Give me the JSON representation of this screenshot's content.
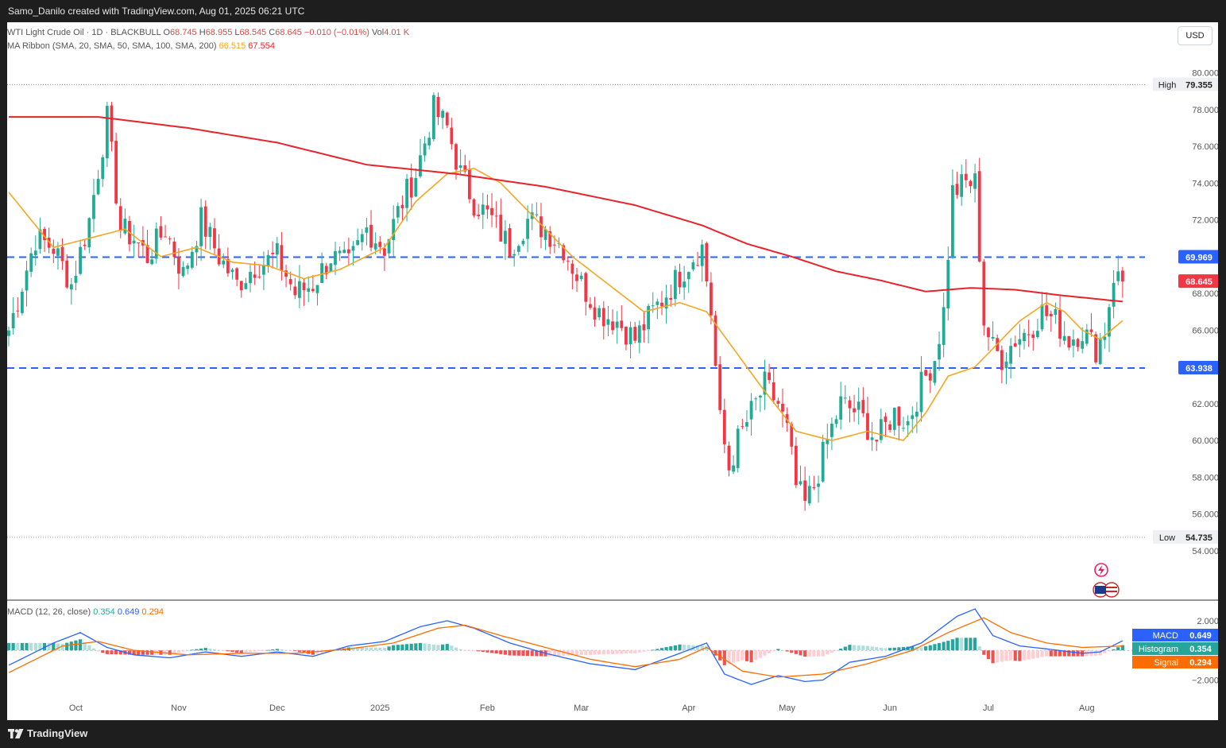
{
  "header": {
    "credit": "Samo_Danilo created with TradingView.com, Aug 01, 2025 06:21 UTC"
  },
  "footer": {
    "brand": "TradingView"
  },
  "legend": {
    "symbol": "WTI Light Crude Oil · 1D · BLACKBULL",
    "o_label": "O",
    "o_value": "68.745",
    "h_label": "H",
    "h_value": "68.955",
    "l_label": "L",
    "l_value": "68.545",
    "c_label": "C",
    "c_value": "68.645",
    "change": "−0.010 (−0.01%)",
    "vol_label": "Vol",
    "vol_value": "4.01 K",
    "ma_label": "MA Ribbon (SMA, 20, SMA, 50, SMA, 100, SMA, 200)",
    "ma_v1": "66.515",
    "ma_v2": "67.554",
    "macd_label": "MACD (12, 26, close)",
    "macd_v1": "0.354",
    "macd_v2": "0.649",
    "macd_v3": "0.294"
  },
  "currency_button": "USD",
  "colors": {
    "up": "#22ab94",
    "down": "#f23645",
    "ma20": "#f5a623",
    "ma200": "#e8232b",
    "level": "#2962ff",
    "macd": "#2962ff",
    "signal": "#ff6d00",
    "hist_up": "#26a69a",
    "hist_down": "#ef5350"
  },
  "chart_data": [
    {
      "type": "candlestick",
      "title": "WTI Light Crude Oil · 1D · BLACKBULL",
      "xlabel": "",
      "ylabel": "",
      "ylim": [
        53,
        80.5
      ],
      "y_ticks": [
        "80.000",
        "78.000",
        "76.000",
        "74.000",
        "72.000",
        "70.000",
        "68.000",
        "66.000",
        "64.000",
        "62.000",
        "60.000",
        "58.000",
        "56.000",
        "54.000"
      ],
      "x_ticks": [
        "Oct",
        "Nov",
        "Dec",
        "2025",
        "Feb",
        "Mar",
        "Apr",
        "May",
        "Jun",
        "Jul",
        "Aug"
      ],
      "grid": false,
      "last_price": "68.645",
      "high": {
        "label": "High",
        "value": "79.355"
      },
      "low": {
        "label": "Low",
        "value": "54.735"
      },
      "levels": [
        {
          "value": "69.969"
        },
        {
          "value": "63.938"
        }
      ],
      "anchors": [
        [
          0,
          66.0
        ],
        [
          6,
          71.0
        ],
        [
          10,
          70.5
        ],
        [
          14,
          68.5
        ],
        [
          18,
          72.0
        ],
        [
          22,
          77.5
        ],
        [
          25,
          71.5
        ],
        [
          28,
          71.0
        ],
        [
          31,
          70.0
        ],
        [
          35,
          71.5
        ],
        [
          39,
          69.0
        ],
        [
          43,
          72.0
        ],
        [
          47,
          70.0
        ],
        [
          51,
          68.5
        ],
        [
          55,
          69.5
        ],
        [
          60,
          70.0
        ],
        [
          64,
          68.0
        ],
        [
          68,
          68.5
        ],
        [
          72,
          70.0
        ],
        [
          76,
          69.5
        ],
        [
          80,
          71.5
        ],
        [
          84,
          70.5
        ],
        [
          88,
          73.0
        ],
        [
          91,
          74.5
        ],
        [
          95,
          78.0
        ],
        [
          98,
          77.0
        ],
        [
          101,
          74.5
        ],
        [
          104,
          73.0
        ],
        [
          108,
          72.0
        ],
        [
          112,
          70.5
        ],
        [
          116,
          72.0
        ],
        [
          120,
          71.5
        ],
        [
          124,
          70.5
        ],
        [
          128,
          68.5
        ],
        [
          132,
          67.0
        ],
        [
          136,
          66.5
        ],
        [
          140,
          65.5
        ],
        [
          144,
          67.0
        ],
        [
          147,
          68.0
        ],
        [
          150,
          69.0
        ],
        [
          153,
          70.0
        ],
        [
          155,
          70.5
        ],
        [
          157,
          67.0
        ],
        [
          159,
          61.0
        ],
        [
          161,
          58.5
        ],
        [
          163,
          60.0
        ],
        [
          166,
          61.5
        ],
        [
          169,
          63.0
        ],
        [
          172,
          62.0
        ],
        [
          174,
          60.5
        ],
        [
          176,
          57.5
        ],
        [
          178,
          56.5
        ],
        [
          180,
          57.5
        ],
        [
          183,
          60.0
        ],
        [
          186,
          62.0
        ],
        [
          190,
          61.5
        ],
        [
          194,
          60.0
        ],
        [
          198,
          61.5
        ],
        [
          201,
          61.0
        ],
        [
          204,
          63.0
        ],
        [
          207,
          64.5
        ],
        [
          209,
          67.0
        ],
        [
          211,
          73.5
        ],
        [
          214,
          74.0
        ],
        [
          216,
          74.0
        ],
        [
          218,
          66.5
        ],
        [
          220,
          65.0
        ],
        [
          222,
          64.5
        ],
        [
          225,
          65.5
        ],
        [
          228,
          66.0
        ],
        [
          231,
          67.0
        ],
        [
          234,
          66.5
        ],
        [
          237,
          65.5
        ],
        [
          240,
          66.0
        ],
        [
          243,
          65.0
        ],
        [
          245,
          66.0
        ],
        [
          247,
          69.0
        ],
        [
          249,
          68.645
        ]
      ],
      "ma20_anchors": [
        [
          0,
          73.5
        ],
        [
          10,
          70.5
        ],
        [
          18,
          71.0
        ],
        [
          26,
          71.5
        ],
        [
          34,
          70.0
        ],
        [
          42,
          70.5
        ],
        [
          50,
          69.7
        ],
        [
          58,
          69.5
        ],
        [
          66,
          68.8
        ],
        [
          74,
          69.3
        ],
        [
          84,
          70.5
        ],
        [
          91,
          73.0
        ],
        [
          98,
          74.5
        ],
        [
          104,
          74.8
        ],
        [
          110,
          74.0
        ],
        [
          118,
          72.0
        ],
        [
          126,
          70.0
        ],
        [
          134,
          68.5
        ],
        [
          142,
          67.0
        ],
        [
          150,
          67.5
        ],
        [
          156,
          67.0
        ],
        [
          162,
          65.0
        ],
        [
          168,
          63.0
        ],
        [
          176,
          60.5
        ],
        [
          184,
          60.0
        ],
        [
          192,
          60.5
        ],
        [
          200,
          60.0
        ],
        [
          205,
          61.5
        ],
        [
          210,
          63.5
        ],
        [
          216,
          64.0
        ],
        [
          222,
          65.5
        ],
        [
          226,
          66.5
        ],
        [
          232,
          67.5
        ],
        [
          236,
          67.0
        ],
        [
          240,
          66.0
        ],
        [
          244,
          65.5
        ],
        [
          249,
          66.515
        ]
      ],
      "ma200_anchors": [
        [
          0,
          77.6
        ],
        [
          20,
          77.6
        ],
        [
          40,
          77.0
        ],
        [
          60,
          76.2
        ],
        [
          80,
          75.0
        ],
        [
          100,
          74.5
        ],
        [
          120,
          73.8
        ],
        [
          140,
          72.8
        ],
        [
          155,
          71.7
        ],
        [
          165,
          70.7
        ],
        [
          175,
          70.0
        ],
        [
          185,
          69.2
        ],
        [
          195,
          68.7
        ],
        [
          205,
          68.1
        ],
        [
          215,
          68.3
        ],
        [
          225,
          68.2
        ],
        [
          235,
          67.9
        ],
        [
          249,
          67.554
        ]
      ]
    },
    {
      "type": "line",
      "title": "MACD (12, 26, close)",
      "xlabel": "",
      "ylabel": "",
      "ylim": [
        -3.1,
        2.8
      ],
      "y_ticks": [
        "2.000",
        "−2.000"
      ],
      "series": [
        {
          "name": "MACD",
          "value": "0.649",
          "anchors": [
            [
              0,
              -1.0
            ],
            [
              10,
              0.5
            ],
            [
              16,
              1.2
            ],
            [
              22,
              0.2
            ],
            [
              28,
              -0.3
            ],
            [
              36,
              -0.5
            ],
            [
              44,
              -0.1
            ],
            [
              52,
              -0.4
            ],
            [
              60,
              -0.1
            ],
            [
              68,
              -0.4
            ],
            [
              76,
              0.3
            ],
            [
              84,
              0.6
            ],
            [
              92,
              1.6
            ],
            [
              98,
              2.0
            ],
            [
              104,
              1.5
            ],
            [
              112,
              0.5
            ],
            [
              120,
              -0.2
            ],
            [
              130,
              -0.9
            ],
            [
              140,
              -1.3
            ],
            [
              150,
              -0.2
            ],
            [
              156,
              0.5
            ],
            [
              160,
              -1.6
            ],
            [
              166,
              -2.3
            ],
            [
              172,
              -1.7
            ],
            [
              178,
              -2.1
            ],
            [
              182,
              -2.0
            ],
            [
              188,
              -0.8
            ],
            [
              196,
              -0.4
            ],
            [
              204,
              0.5
            ],
            [
              212,
              2.3
            ],
            [
              216,
              2.8
            ],
            [
              220,
              1.0
            ],
            [
              226,
              0.3
            ],
            [
              232,
              0.1
            ],
            [
              240,
              -0.2
            ],
            [
              244,
              -0.1
            ],
            [
              249,
              0.649
            ]
          ]
        },
        {
          "name": "Signal",
          "value": "0.294",
          "anchors": [
            [
              0,
              -1.5
            ],
            [
              12,
              0.3
            ],
            [
              20,
              0.6
            ],
            [
              28,
              0.0
            ],
            [
              40,
              -0.3
            ],
            [
              52,
              -0.2
            ],
            [
              64,
              -0.2
            ],
            [
              76,
              0.1
            ],
            [
              86,
              0.5
            ],
            [
              96,
              1.5
            ],
            [
              102,
              1.7
            ],
            [
              110,
              1.0
            ],
            [
              120,
              0.2
            ],
            [
              130,
              -0.6
            ],
            [
              140,
              -1.1
            ],
            [
              150,
              -0.6
            ],
            [
              156,
              0.2
            ],
            [
              164,
              -1.4
            ],
            [
              172,
              -1.8
            ],
            [
              182,
              -1.6
            ],
            [
              192,
              -0.9
            ],
            [
              202,
              0.0
            ],
            [
              210,
              1.2
            ],
            [
              218,
              2.2
            ],
            [
              224,
              1.2
            ],
            [
              232,
              0.5
            ],
            [
              240,
              0.2
            ],
            [
              249,
              0.294
            ]
          ]
        },
        {
          "name": "Histogram",
          "value": "0.354"
        }
      ]
    }
  ],
  "icons": [
    "lightning-icon",
    "flag-icon"
  ]
}
